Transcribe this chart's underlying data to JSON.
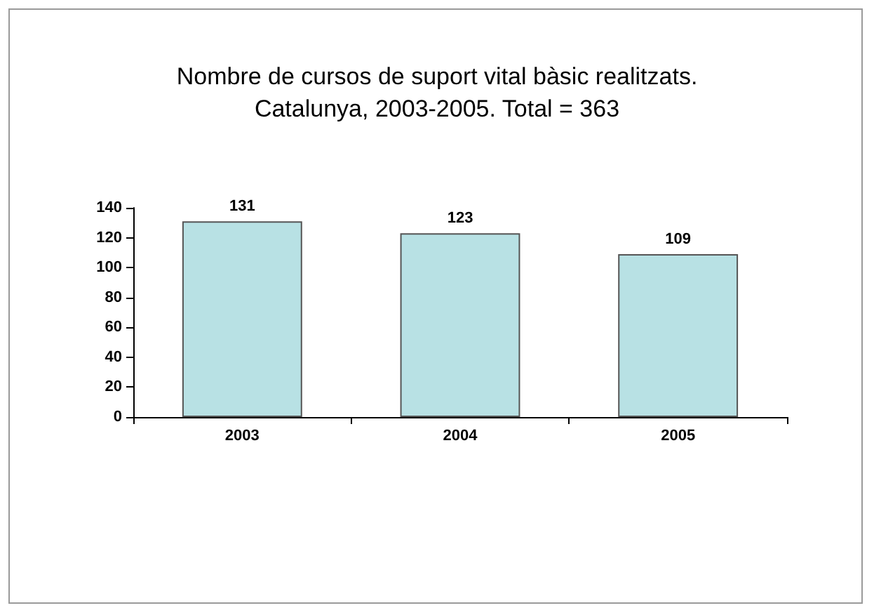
{
  "chart_data": {
    "type": "bar",
    "title": "Nombre de cursos de suport vital bàsic realitzats.\nCatalunya, 2003-2005. Total = 363",
    "categories": [
      "2003",
      "2004",
      "2005"
    ],
    "values": [
      131,
      123,
      109
    ],
    "color": "#b8e1e4",
    "ylim": [
      0,
      140
    ],
    "yticks": [
      0,
      20,
      40,
      60,
      80,
      100,
      120,
      140
    ],
    "grid": false,
    "data_labels": true
  }
}
